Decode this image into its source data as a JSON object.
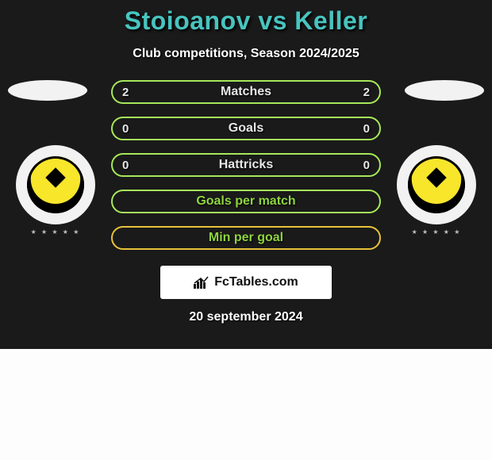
{
  "title": "Stoioanov vs Keller",
  "subtitle": "Club competitions, Season 2024/2025",
  "date": "20 september 2024",
  "logo_text": "FcTables.com",
  "colors": {
    "card_bg": "#1a1a1a",
    "title_color": "#48c4c0",
    "text_color": "#ffffff",
    "oval_bg": "#f2f2f2",
    "badge_bg": "#f2f2f2",
    "logo_box_bg": "#ffffff"
  },
  "bars": [
    {
      "label": "Matches",
      "left": "2",
      "right": "2",
      "border": "#a6e85a",
      "label_color": "#e6e6e6",
      "val_color": "#e6e6e6"
    },
    {
      "label": "Goals",
      "left": "0",
      "right": "0",
      "border": "#a6e85a",
      "label_color": "#e6e6e6",
      "val_color": "#e6e6e6"
    },
    {
      "label": "Hattricks",
      "left": "0",
      "right": "0",
      "border": "#a6e85a",
      "label_color": "#e6e6e6",
      "val_color": "#e6e6e6"
    },
    {
      "label": "Goals per match",
      "left": "",
      "right": "",
      "border": "#a6e85a",
      "label_color": "#8fd43f",
      "val_color": "#e6e6e6"
    },
    {
      "label": "Min per goal",
      "left": "",
      "right": "",
      "border": "#e8c23a",
      "label_color": "#8fd43f",
      "val_color": "#e6e6e6"
    }
  ]
}
